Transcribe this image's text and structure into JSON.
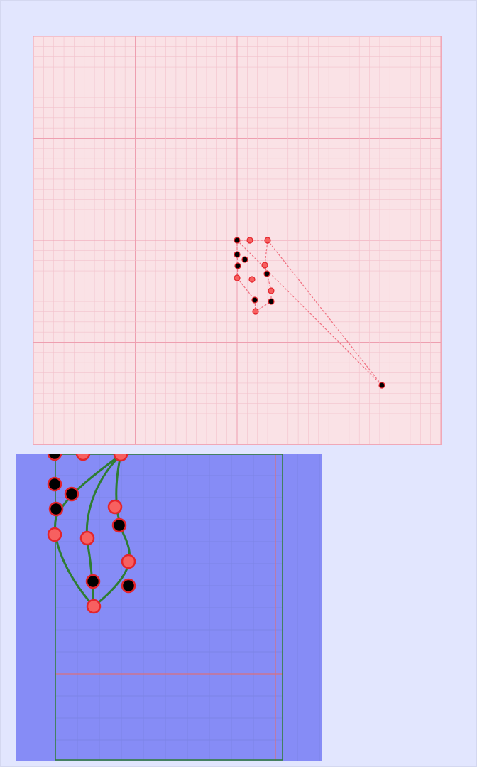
{
  "colors": {
    "page_background": "#e2e6fe",
    "overview_background": "#fae2e6",
    "overview_grid_minor": "#f2c2cc",
    "overview_grid_major": "#ee9fb0",
    "detail_background": "#868cf6",
    "detail_grid_minor": "#7c84e6",
    "detail_grid_red": "#d9707c",
    "detail_frame": "#2e7d32",
    "marker_outline": "#e3242b",
    "marker_black": "#000000",
    "marker_red": "#f76060",
    "link_dashed": "#f07080",
    "curve_green": "#2e7d32"
  },
  "icons": {
    "node_black": "black-circle-marker-icon",
    "node_red": "red-circle-marker-icon"
  }
}
